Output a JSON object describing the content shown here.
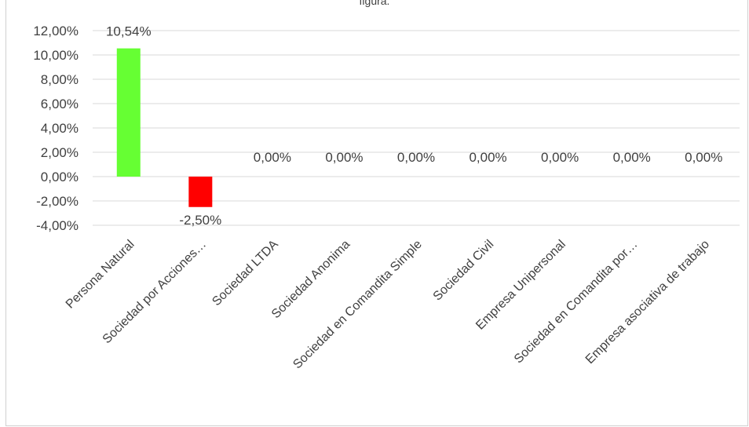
{
  "chart_data": {
    "type": "bar",
    "title": "figura.",
    "categories": [
      "Persona Natural",
      "Sociedad por Acciones…",
      "Sociedad LTDA",
      "Sociedad Anonima",
      "Sociedad en Comandita Simple",
      "Sociedad Civil",
      "Empresa Unipersonal",
      "Sociedad en Comandita por…",
      "Empresa asociativa de trabajo"
    ],
    "values": [
      10.54,
      -2.5,
      0,
      0,
      0,
      0,
      0,
      0,
      0
    ],
    "data_labels": [
      "10,54%",
      "-2,50%",
      "0,00%",
      "0,00%",
      "0,00%",
      "0,00%",
      "0,00%",
      "0,00%",
      "0,00%"
    ],
    "bar_colors": [
      "#66ff33",
      "#ff0000",
      "#66ff33",
      "#66ff33",
      "#66ff33",
      "#66ff33",
      "#66ff33",
      "#66ff33",
      "#66ff33"
    ],
    "ylim": [
      -4,
      12
    ],
    "yticks": [
      12,
      10,
      8,
      6,
      4,
      2,
      0,
      -2,
      -4
    ],
    "ytick_labels": [
      "12,00%",
      "10,00%",
      "8,00%",
      "6,00%",
      "4,00%",
      "2,00%",
      "0,00%",
      "-2,00%",
      "-4,00%"
    ],
    "xlabel": "",
    "ylabel": "",
    "grid": true,
    "gridline_color": "#d9d9d9",
    "legend": "none"
  }
}
